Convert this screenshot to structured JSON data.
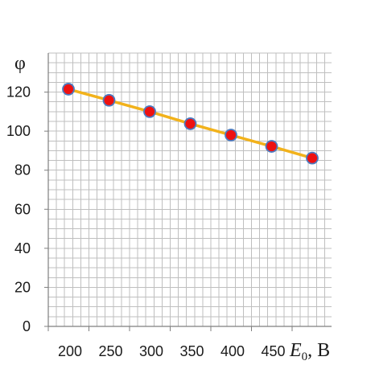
{
  "chart_data": {
    "type": "line",
    "ylabel": "φ",
    "xlabel": {
      "variable": "E",
      "subscript": "0",
      "unit": ", B"
    },
    "x_tick_labels": [
      "200",
      "250",
      "300",
      "350",
      "400",
      "450"
    ],
    "y_tick_labels": [
      "0",
      "20",
      "40",
      "60",
      "80",
      "100",
      "120"
    ],
    "ylim": [
      0,
      140
    ],
    "series": [
      {
        "x": [
          200,
          250,
          300,
          350,
          400,
          450,
          500
        ],
        "y": [
          121.5,
          115.8,
          110,
          103.8,
          98,
          92.2,
          86.2
        ]
      }
    ],
    "grid": true,
    "colors": {
      "line": "#f2b21b",
      "marker_fill": "#ee1111",
      "marker_edge": "#4c7ac0",
      "grid": "#bfbfbf",
      "axis": "#7f7f7f"
    }
  }
}
